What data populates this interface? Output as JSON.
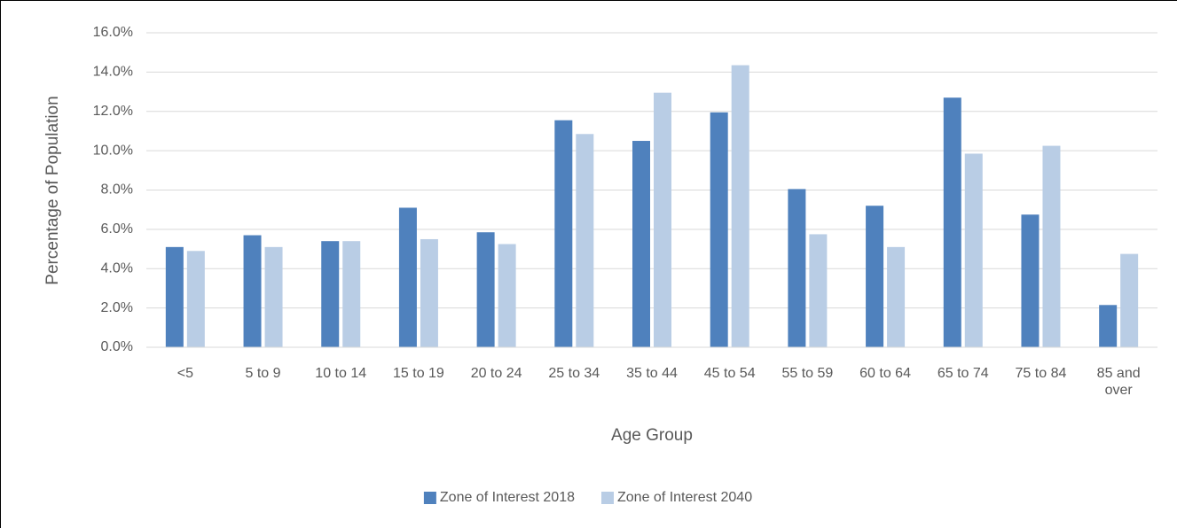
{
  "chart_data": {
    "type": "bar",
    "x_label": "Age Group",
    "y_label": "Percentage of Population",
    "categories": [
      "<5",
      "5 to 9",
      "10 to 14",
      "15 to 19",
      "20 to 24",
      "25 to 34",
      "35 to 44",
      "45 to 54",
      "55 to 59",
      "60 to 64",
      "65 to 74",
      "75 to 84",
      "85 and over"
    ],
    "series": [
      {
        "name": "Zone of Interest 2018",
        "color": "#4f81bd",
        "values": [
          5.1,
          5.7,
          5.4,
          7.1,
          5.85,
          11.55,
          10.5,
          11.95,
          8.05,
          7.2,
          12.7,
          6.75,
          2.15
        ]
      },
      {
        "name": "Zone of Interest 2040",
        "color": "#b9cde5",
        "values": [
          4.9,
          5.1,
          5.4,
          5.5,
          5.25,
          10.85,
          12.95,
          14.35,
          5.75,
          5.1,
          9.85,
          10.25,
          4.75
        ]
      }
    ],
    "ylim": [
      0,
      16
    ],
    "yticks": [
      {
        "value": 0,
        "label": "0.0%"
      },
      {
        "value": 2,
        "label": "2.0%"
      },
      {
        "value": 4,
        "label": "4.0%"
      },
      {
        "value": 6,
        "label": "6.0%"
      },
      {
        "value": 8,
        "label": "8.0%"
      },
      {
        "value": 10,
        "label": "10.0%"
      },
      {
        "value": 12,
        "label": "12.0%"
      },
      {
        "value": 14,
        "label": "14.0%"
      },
      {
        "value": 16,
        "label": "16.0%"
      }
    ],
    "grid": true,
    "legend": "bottom"
  }
}
